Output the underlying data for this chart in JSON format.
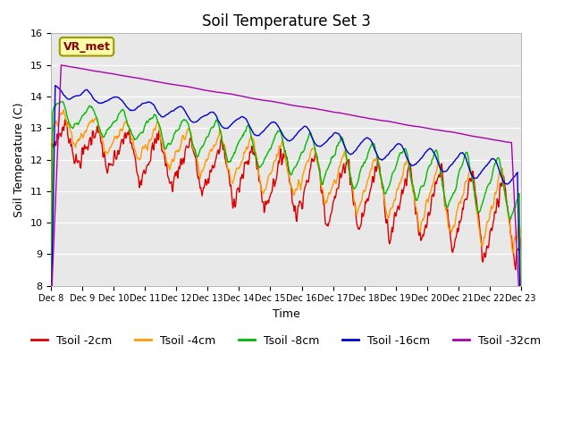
{
  "title": "Soil Temperature Set 3",
  "xlabel": "Time",
  "ylabel": "Soil Temperature (C)",
  "ylim": [
    8.0,
    16.0
  ],
  "yticks": [
    8.0,
    9.0,
    10.0,
    11.0,
    12.0,
    13.0,
    14.0,
    15.0,
    16.0
  ],
  "xtick_labels": [
    "Dec 8",
    "Dec 9",
    "Dec 10",
    "Dec 11",
    "Dec 12",
    "Dec 13",
    "Dec 14",
    "Dec 15",
    "Dec 16",
    "Dec 17",
    "Dec 18",
    "Dec 19",
    "Dec 20",
    "Dec 21",
    "Dec 22",
    "Dec 23"
  ],
  "series_colors": [
    "#dd0000",
    "#ff9900",
    "#00bb00",
    "#0000cc",
    "#aa00aa"
  ],
  "series_labels": [
    "Tsoil -2cm",
    "Tsoil -4cm",
    "Tsoil -8cm",
    "Tsoil -16cm",
    "Tsoil -32cm"
  ],
  "background_color": "#e8e8e8",
  "annotation_text": "VR_met",
  "annotation_bg": "#ffffaa",
  "annotation_border": "#999900",
  "title_fontsize": 12,
  "axis_fontsize": 9,
  "legend_fontsize": 9,
  "figwidth": 6.4,
  "figheight": 4.8,
  "dpi": 100
}
